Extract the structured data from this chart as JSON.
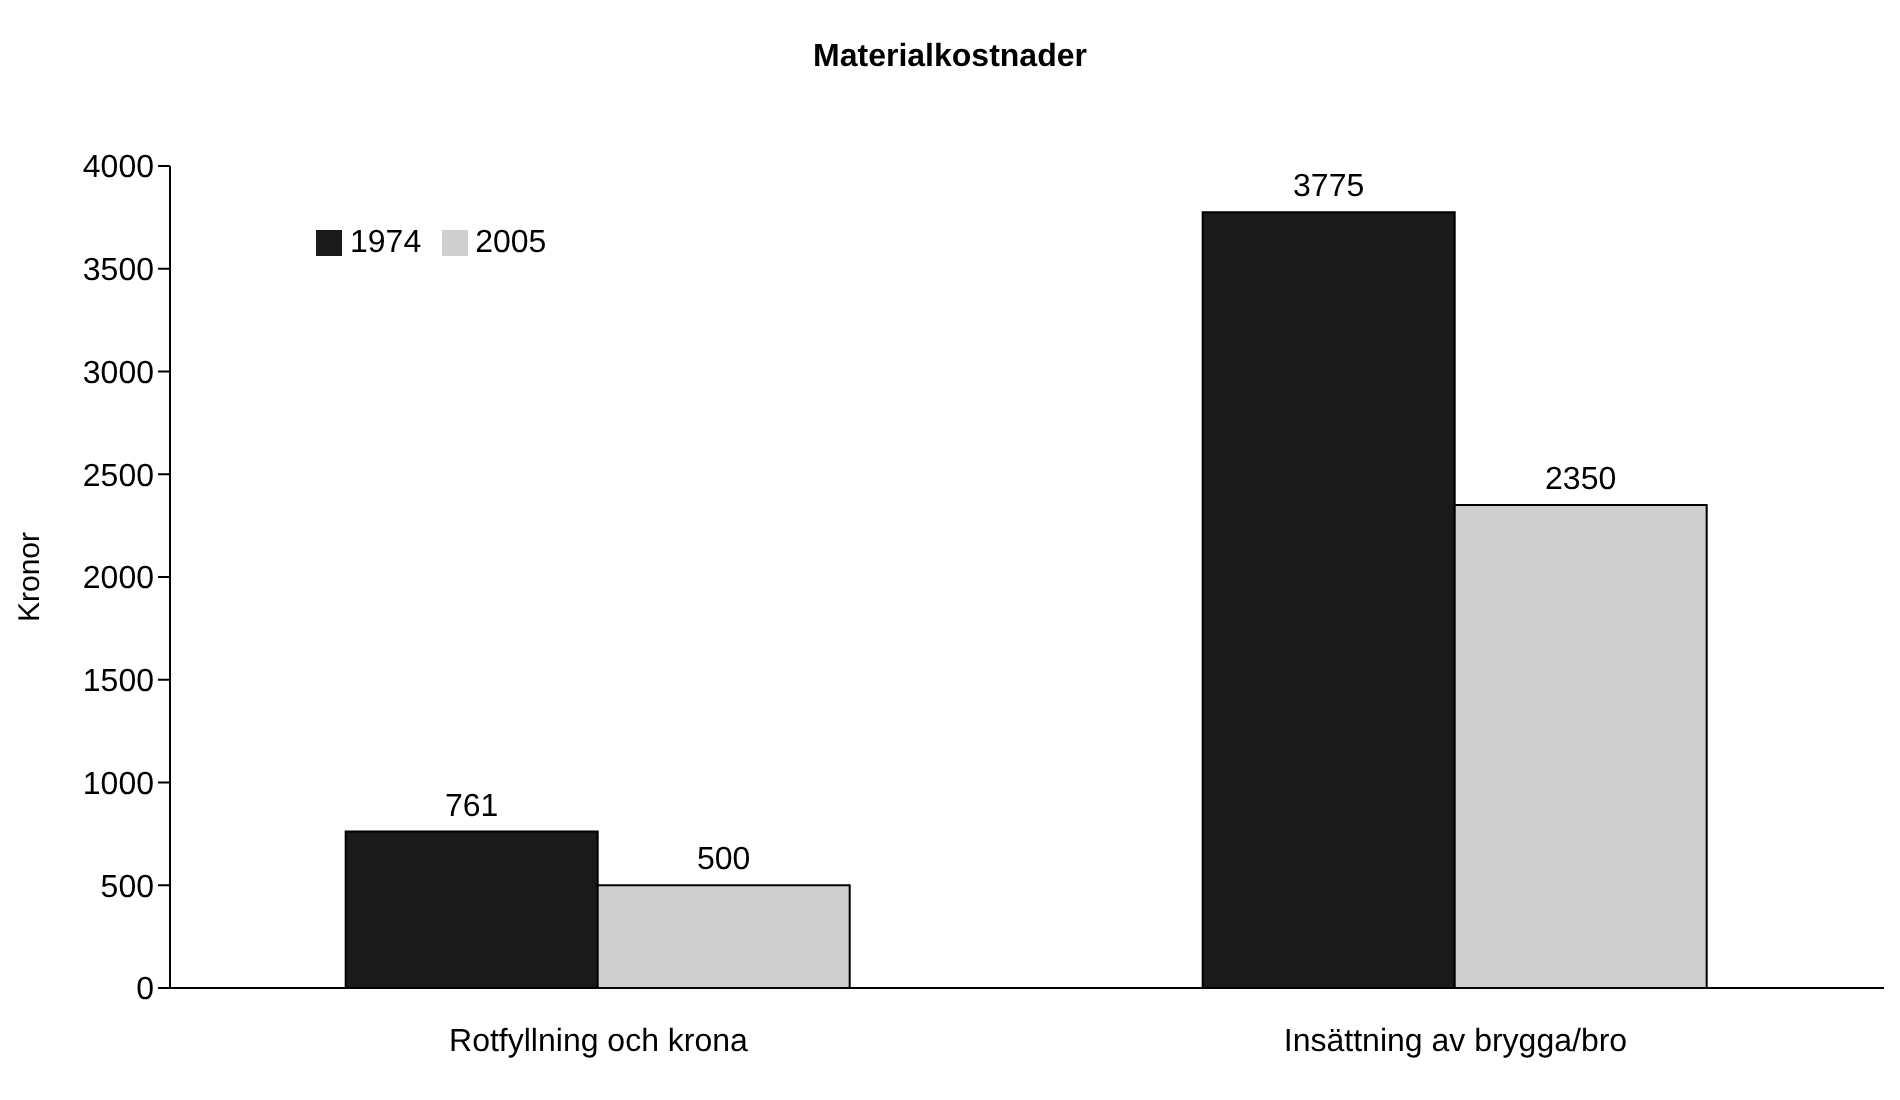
{
  "chart_data": {
    "type": "bar",
    "title": "Materialkostnader",
    "ylabel": "Kronor",
    "categories": [
      "Rotfyllning och krona",
      "Insättning av brygga/bro"
    ],
    "series": [
      {
        "name": "1974",
        "color": "#1a1a1a",
        "values": [
          761,
          3775
        ]
      },
      {
        "name": "2005",
        "color": "#cfcfcf",
        "values": [
          500,
          2350
        ]
      }
    ],
    "ylim": [
      0,
      4000
    ],
    "yticks": [
      0,
      500,
      1000,
      1500,
      2000,
      2500,
      3000,
      3500,
      4000
    ],
    "grid": false,
    "legend": "top left",
    "data_labels": true
  }
}
